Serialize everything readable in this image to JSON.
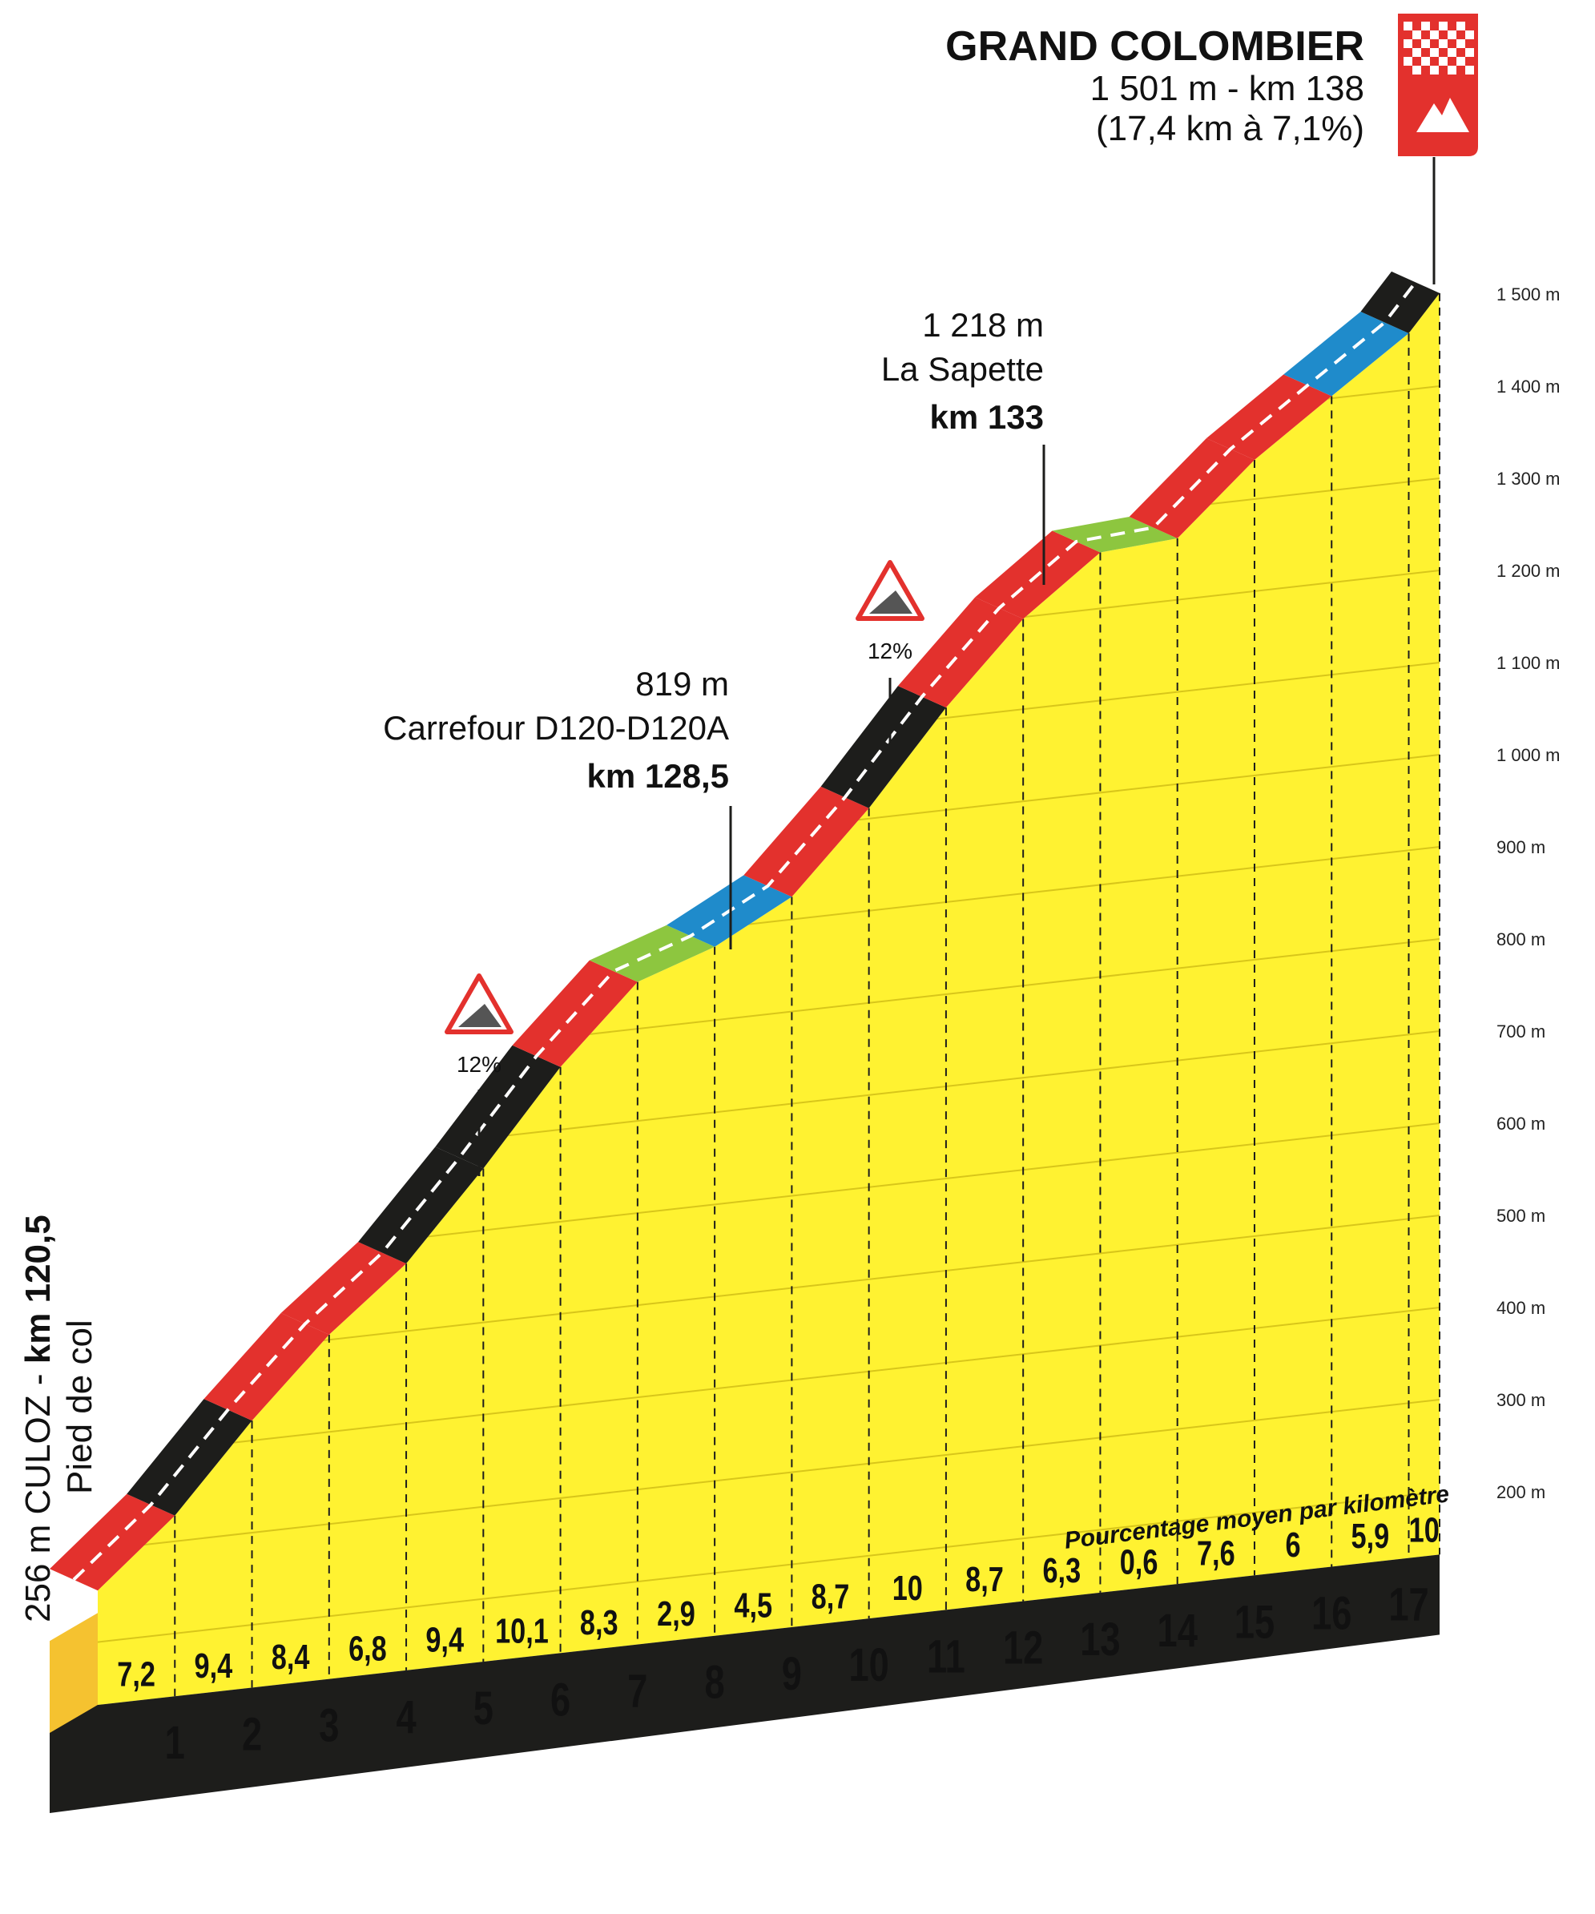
{
  "summit": {
    "name": "GRAND COLOMBIER",
    "line2": "1 501 m - km 138",
    "line3": "(17,4 km à 7,1%)"
  },
  "start": {
    "line1_prefix": "256 m CULOZ - ",
    "line1_km": "km 120,5",
    "line2": "Pied de col"
  },
  "waypoints": [
    {
      "alt": "819 m",
      "name": "Carrefour D120-D120A",
      "km": "km 128,5"
    },
    {
      "alt": "1 218 m",
      "name": "La Sapette",
      "km": "km 133"
    }
  ],
  "warnings": [
    {
      "label": "12%",
      "km": 5.4
    },
    {
      "label": "12%",
      "km": 10.2
    }
  ],
  "legend_note": "Pourcentage moyen par kilomètre",
  "colors": {
    "fill": "#fff231",
    "black": "#1d1d1b",
    "red": "#e3312d",
    "blue": "#1f8bcb",
    "green": "#8dc63f",
    "base_front": "#1d1d1b",
    "start_block": "#f5c230"
  },
  "chart_data": {
    "type": "area",
    "title": "GRAND COLOMBIER",
    "xlabel": "",
    "ylabel": "",
    "ylim": [
      150,
      1550
    ],
    "y_ticks": [
      "200 m",
      "300 m",
      "400 m",
      "500 m",
      "600 m",
      "700 m",
      "800 m",
      "900 m",
      "1 000 m",
      "1 100 m",
      "1 200 m",
      "1 300 m",
      "1 400 m",
      "1 500 m"
    ],
    "y_tick_values": [
      200,
      300,
      400,
      500,
      600,
      700,
      800,
      900,
      1000,
      1100,
      1200,
      1300,
      1400,
      1500
    ],
    "km_labels": [
      "1",
      "2",
      "3",
      "4",
      "5",
      "6",
      "7",
      "8",
      "9",
      "10",
      "11",
      "12",
      "13",
      "14",
      "15",
      "16",
      "17"
    ],
    "gradients": [
      "7,2",
      "9,4",
      "8,4",
      "6,8",
      "9,4",
      "10,1",
      "8,3",
      "2,9",
      "4,5",
      "8,7",
      "10",
      "8,7",
      "6,3",
      "0,6",
      "7,6",
      "6",
      "5,9",
      "10"
    ],
    "gradient_values": [
      7.2,
      9.4,
      8.4,
      6.8,
      9.4,
      10.1,
      8.3,
      2.9,
      4.5,
      8.7,
      10,
      8.7,
      6.3,
      0.6,
      7.6,
      6,
      5.9,
      10
    ],
    "segment_colors": [
      "red",
      "black",
      "red",
      "red",
      "black",
      "black",
      "red",
      "green",
      "blue",
      "red",
      "black",
      "red",
      "red",
      "green",
      "red",
      "red",
      "blue",
      "black"
    ],
    "km_points": [
      0,
      1,
      2,
      3,
      4,
      5,
      6,
      7,
      8,
      9,
      10,
      11,
      12,
      13,
      14,
      15,
      16,
      17,
      17.4
    ],
    "start_altitude": 256,
    "summit_altitude": 1501
  }
}
